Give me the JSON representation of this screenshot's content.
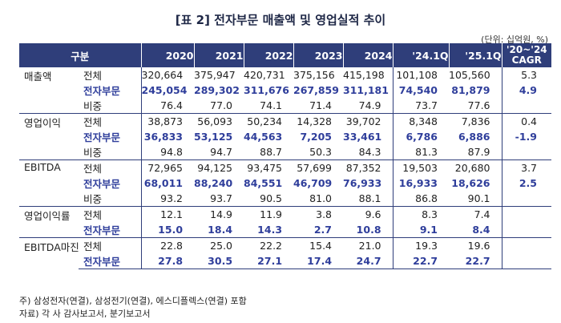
{
  "title": "[표 2] 전자부문 매출액 및 영업실적 추이",
  "unit": "(단위: 십억원, %)",
  "headers": {
    "category": "구분",
    "years": [
      "2020",
      "2021",
      "2022",
      "2023",
      "2024",
      "'24.1Q",
      "'25.1Q"
    ],
    "cagr_line1": "'20~'24",
    "cagr_line2": "CAGR"
  },
  "groups": [
    {
      "label": "매출액",
      "rows": [
        {
          "sub": "전체",
          "vals": [
            "320,664",
            "375,947",
            "420,731",
            "375,156",
            "415,198",
            "101,108",
            "105,560"
          ],
          "cagr": "5.3"
        },
        {
          "sub": "전자부문",
          "vals": [
            "245,054",
            "289,302",
            "311,676",
            "267,859",
            "311,181",
            "74,540",
            "81,879"
          ],
          "cagr": "4.9"
        },
        {
          "sub": "비중",
          "vals": [
            "76.4",
            "77.0",
            "74.1",
            "71.4",
            "74.9",
            "73.7",
            "77.6"
          ],
          "cagr": ""
        }
      ]
    },
    {
      "label": "영업이익",
      "rows": [
        {
          "sub": "전체",
          "vals": [
            "38,873",
            "56,093",
            "50,234",
            "14,328",
            "39,702",
            "8,348",
            "7,836"
          ],
          "cagr": "0.4"
        },
        {
          "sub": "전자부문",
          "vals": [
            "36,833",
            "53,125",
            "44,563",
            "7,205",
            "33,461",
            "6,786",
            "6,886"
          ],
          "cagr": "-1.9"
        },
        {
          "sub": "비중",
          "vals": [
            "94.8",
            "94.7",
            "88.7",
            "50.3",
            "84.3",
            "81.3",
            "87.9"
          ],
          "cagr": ""
        }
      ]
    },
    {
      "label": "EBITDA",
      "rows": [
        {
          "sub": "전체",
          "vals": [
            "72,965",
            "94,125",
            "93,475",
            "57,699",
            "87,352",
            "19,503",
            "20,680"
          ],
          "cagr": "3.7"
        },
        {
          "sub": "전자부문",
          "vals": [
            "68,011",
            "88,240",
            "84,551",
            "46,709",
            "76,933",
            "16,933",
            "18,626"
          ],
          "cagr": "2.5"
        },
        {
          "sub": "비중",
          "vals": [
            "93.2",
            "93.7",
            "90.5",
            "81.0",
            "88.1",
            "86.8",
            "90.1"
          ],
          "cagr": ""
        }
      ]
    },
    {
      "label": "영업이익률",
      "rows": [
        {
          "sub": "전체",
          "vals": [
            "12.1",
            "14.9",
            "11.9",
            "3.8",
            "9.6",
            "8.3",
            "7.4"
          ],
          "cagr": ""
        },
        {
          "sub": "전자부문",
          "vals": [
            "15.0",
            "18.4",
            "14.3",
            "2.7",
            "10.8",
            "9.1",
            "8.4"
          ],
          "cagr": ""
        }
      ]
    },
    {
      "label": "EBITDA마진",
      "rows": [
        {
          "sub": "전체",
          "vals": [
            "22.8",
            "25.0",
            "22.2",
            "15.4",
            "21.0",
            "19.3",
            "19.6"
          ],
          "cagr": ""
        },
        {
          "sub": "전자부문",
          "vals": [
            "27.8",
            "30.5",
            "27.1",
            "17.4",
            "24.7",
            "22.7",
            "22.7"
          ],
          "cagr": ""
        }
      ]
    }
  ],
  "notes": [
    "주) 삼성전자(연결), 삼성전기(연결), 에스디플렉스(연결) 포함",
    "자료) 각 사 감사보고서, 분기보고서"
  ],
  "colors": {
    "header_bg": "#2f3e7a",
    "highlight_text": "#2f3e9b"
  }
}
